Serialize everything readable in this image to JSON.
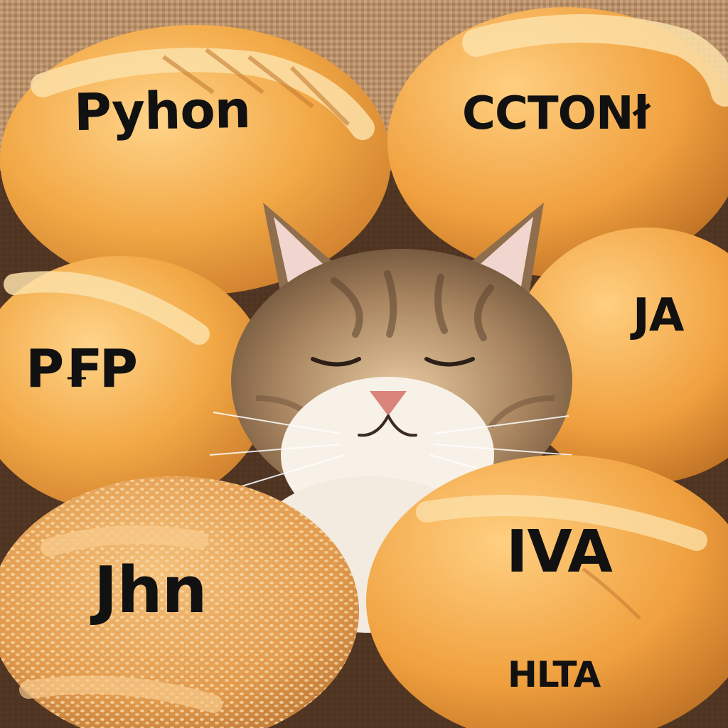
{
  "scene": {
    "subject": "cat sleeping among bread rolls",
    "bun_labels": [
      {
        "id": "python",
        "text": "Pyhon"
      },
      {
        "id": "cton",
        "text": "CCTONł"
      },
      {
        "id": "ja",
        "text": "JA"
      },
      {
        "id": "pfp",
        "text": "P₣P"
      },
      {
        "id": "jhn",
        "text": "Jhn"
      },
      {
        "id": "iva",
        "text": "IVA"
      },
      {
        "id": "hlta",
        "text": "HLTA"
      }
    ]
  },
  "colors": {
    "bun_fill": "#f2a845",
    "bun_shadow": "#c9792a",
    "bun_highlight": "#ffd48a",
    "burlap": "#b8906a",
    "cat_fur": "#a88560",
    "cat_white": "#f7f1e8",
    "nose": "#d9847a",
    "label": "#111111"
  }
}
